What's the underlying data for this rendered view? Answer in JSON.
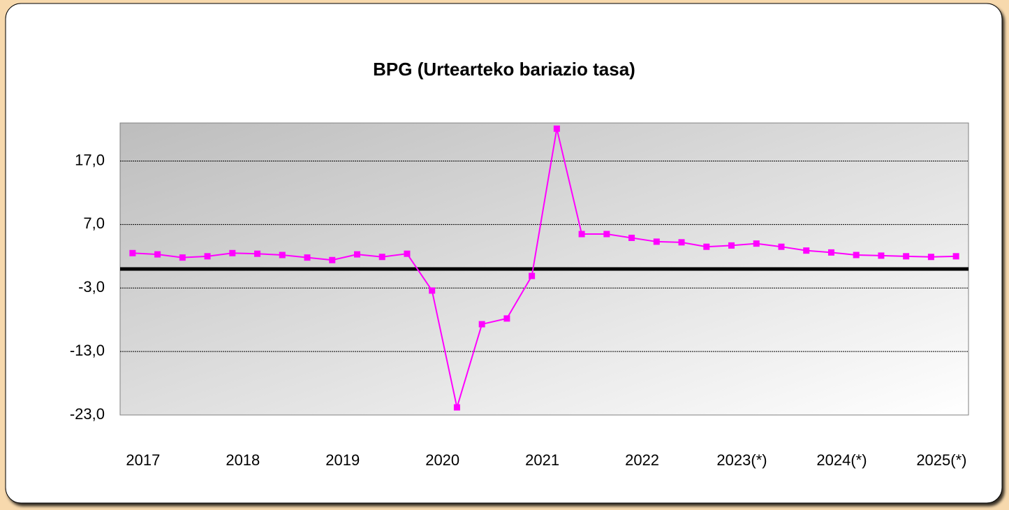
{
  "chart_data": {
    "type": "line",
    "title": "BPG (Urtearteko bariazio tasa)",
    "categories": [
      "2017",
      null,
      null,
      null,
      "2018",
      null,
      null,
      null,
      "2019",
      null,
      null,
      null,
      "2020",
      null,
      null,
      null,
      "2021",
      null,
      null,
      null,
      "2022",
      null,
      null,
      null,
      "2023(*)",
      null,
      null,
      null,
      "2024(*)",
      null,
      null,
      null,
      "2025(*)",
      null
    ],
    "series": [
      {
        "name": "BPG",
        "color": "#ff00ff",
        "values": [
          2.5,
          2.3,
          1.8,
          2.0,
          2.5,
          2.4,
          2.2,
          1.8,
          1.4,
          2.3,
          1.9,
          2.4,
          -3.4,
          -21.8,
          -8.7,
          -7.8,
          -1.1,
          22.1,
          5.5,
          5.5,
          4.9,
          4.3,
          4.2,
          3.5,
          3.7,
          4.0,
          3.5,
          2.9,
          2.6,
          2.2,
          2.1,
          2.0,
          1.9,
          2.0
        ]
      }
    ],
    "ylim": [
      -23,
      23
    ],
    "yticks": [
      {
        "value": -23,
        "label": "-23,0"
      },
      {
        "value": -13,
        "label": "-13,0"
      },
      {
        "value": -3,
        "label": "-3,0"
      },
      {
        "value": 7,
        "label": "7,0"
      },
      {
        "value": 17,
        "label": "17,0"
      }
    ],
    "grid": true
  }
}
